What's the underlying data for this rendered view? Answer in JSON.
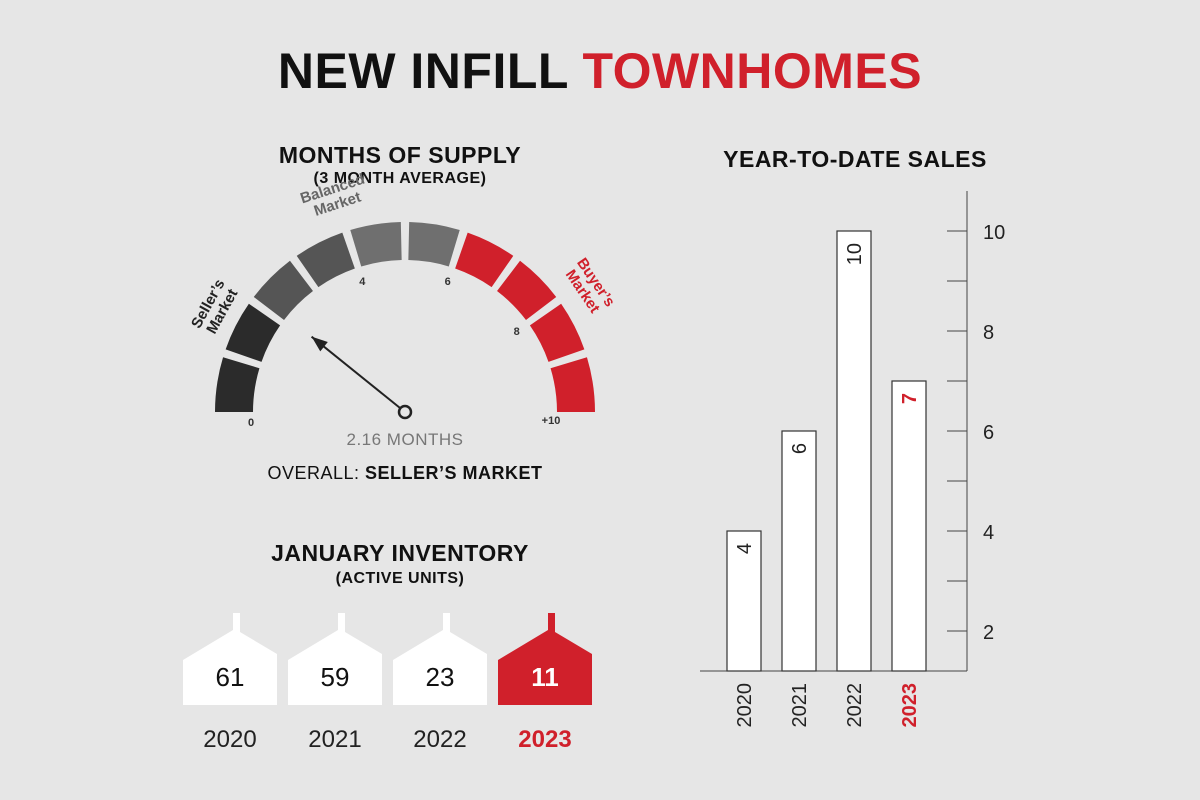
{
  "title": {
    "part1": "NEW INFILL",
    "part2": "TOWNHOMES"
  },
  "colors": {
    "accent": "#d0202b",
    "dark": "#2b2b2b",
    "mid": "#555555",
    "balanced": "#6f6f6f",
    "bg": "#e6e6e6"
  },
  "supply": {
    "heading": "MONTHS OF SUPPLY",
    "subheading": "(3 MONTH AVERAGE)",
    "readout": "2.16 MONTHS",
    "overall_label": "OVERALL:",
    "overall_value": "SELLER’S MARKET"
  },
  "inventory": {
    "heading": "JANUARY INVENTORY",
    "subheading": "(ACTIVE UNITS)"
  },
  "sales": {
    "heading": "YEAR-TO-DATE SALES"
  },
  "chart_data": [
    {
      "type": "gauge",
      "title": "MONTHS OF SUPPLY",
      "subtitle": "(3 MONTH AVERAGE)",
      "range": [
        0,
        10
      ],
      "value": 2.16,
      "unit": "MONTHS",
      "tick_labels": [
        "0",
        "4",
        "6",
        "8",
        "+10"
      ],
      "tick_values": [
        0,
        4,
        6,
        8,
        10
      ],
      "zones": [
        {
          "label": "Seller’s Market",
          "from": 0,
          "to": 4,
          "color": "#2b2b2b"
        },
        {
          "label": "Balanced Market",
          "from": 4,
          "to": 6,
          "color": "#6f6f6f"
        },
        {
          "label": "Buyer’s Market",
          "from": 6,
          "to": 10,
          "color": "#d0202b"
        }
      ],
      "overall": "SELLER’S MARKET"
    },
    {
      "type": "bar",
      "title": "JANUARY INVENTORY",
      "subtitle": "(ACTIVE UNITS)",
      "categories": [
        "2020",
        "2021",
        "2022",
        "2023"
      ],
      "values": [
        61,
        59,
        23,
        11
      ],
      "labels": [
        "61",
        "59",
        "23",
        "11"
      ],
      "highlight": "2023"
    },
    {
      "type": "bar",
      "title": "YEAR-TO-DATE SALES",
      "categories": [
        "2020",
        "2021",
        "2022",
        "2023"
      ],
      "values": [
        4,
        6,
        10,
        7
      ],
      "labels": [
        "4",
        "6",
        "10",
        "7"
      ],
      "highlight": "2023",
      "ylim": [
        1.2,
        10.8
      ],
      "yticks": [
        2,
        4,
        6,
        8,
        10
      ],
      "ytick_labels": [
        "2",
        "4",
        "6",
        "8",
        "10"
      ]
    }
  ]
}
